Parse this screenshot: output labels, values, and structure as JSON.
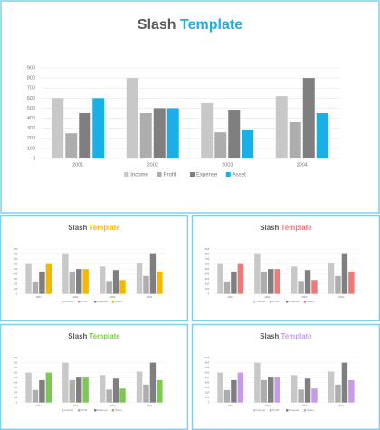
{
  "chart_data": [
    {
      "type": "bar",
      "title": [
        "Slash",
        "Template"
      ],
      "categories": [
        "2001",
        "2002",
        "2003",
        "2004"
      ],
      "series": [
        {
          "name": "Income",
          "color": "#c8c8c8",
          "values": [
            600,
            800,
            550,
            620
          ]
        },
        {
          "name": "Profit",
          "color": "#adadad",
          "values": [
            250,
            450,
            260,
            360
          ]
        },
        {
          "name": "Expense",
          "color": "#7f7f7f",
          "values": [
            450,
            500,
            480,
            800
          ]
        },
        {
          "name": "Asset",
          "color": "#1ab0e6",
          "values": [
            600,
            500,
            280,
            450
          ]
        }
      ],
      "ylim": [
        0,
        900
      ],
      "yticks": [
        0,
        100,
        200,
        300,
        400,
        500,
        600,
        700,
        800,
        900
      ],
      "grid": true,
      "legend": "bottom"
    },
    {
      "type": "bar",
      "title": [
        "Slash",
        "Template"
      ],
      "categories": [
        "2001",
        "2002",
        "2003",
        "2004"
      ],
      "series": [
        {
          "name": "Income",
          "color": "#c8c8c8",
          "values": [
            600,
            800,
            550,
            620
          ]
        },
        {
          "name": "Profit",
          "color": "#adadad",
          "values": [
            250,
            450,
            260,
            360
          ]
        },
        {
          "name": "Expense",
          "color": "#7f7f7f",
          "values": [
            450,
            500,
            480,
            800
          ]
        },
        {
          "name": "Asset",
          "color": "#f5b800",
          "values": [
            600,
            500,
            280,
            450
          ]
        }
      ],
      "ylim": [
        0,
        900
      ],
      "yticks": [
        0,
        100,
        200,
        300,
        400,
        500,
        600,
        700,
        800,
        900
      ],
      "grid": true,
      "legend": "bottom"
    },
    {
      "type": "bar",
      "title": [
        "Slash",
        "Template"
      ],
      "categories": [
        "2001",
        "2002",
        "2003",
        "2004"
      ],
      "series": [
        {
          "name": "Income",
          "color": "#c8c8c8",
          "values": [
            600,
            800,
            550,
            620
          ]
        },
        {
          "name": "Profit",
          "color": "#adadad",
          "values": [
            250,
            450,
            260,
            360
          ]
        },
        {
          "name": "Expense",
          "color": "#7f7f7f",
          "values": [
            450,
            500,
            480,
            800
          ]
        },
        {
          "name": "Asset",
          "color": "#f07878",
          "values": [
            600,
            500,
            280,
            450
          ]
        }
      ],
      "ylim": [
        0,
        900
      ],
      "yticks": [
        0,
        100,
        200,
        300,
        400,
        500,
        600,
        700,
        800,
        900
      ],
      "grid": true,
      "legend": "bottom"
    },
    {
      "type": "bar",
      "title": [
        "Slash",
        "Template"
      ],
      "categories": [
        "2001",
        "2002",
        "2003",
        "2004"
      ],
      "series": [
        {
          "name": "Income",
          "color": "#c8c8c8",
          "values": [
            600,
            800,
            550,
            620
          ]
        },
        {
          "name": "Profit",
          "color": "#adadad",
          "values": [
            250,
            450,
            260,
            360
          ]
        },
        {
          "name": "Expense",
          "color": "#7f7f7f",
          "values": [
            450,
            500,
            480,
            800
          ]
        },
        {
          "name": "Asset",
          "color": "#7dc852",
          "values": [
            600,
            500,
            280,
            450
          ]
        }
      ],
      "ylim": [
        0,
        900
      ],
      "yticks": [
        0,
        100,
        200,
        300,
        400,
        500,
        600,
        700,
        800,
        900
      ],
      "grid": true,
      "legend": "bottom"
    },
    {
      "type": "bar",
      "title": [
        "Slash",
        "Template"
      ],
      "categories": [
        "2001",
        "2002",
        "2003",
        "2004"
      ],
      "series": [
        {
          "name": "Income",
          "color": "#c8c8c8",
          "values": [
            600,
            800,
            550,
            620
          ]
        },
        {
          "name": "Profit",
          "color": "#adadad",
          "values": [
            250,
            450,
            260,
            360
          ]
        },
        {
          "name": "Expense",
          "color": "#7f7f7f",
          "values": [
            450,
            500,
            480,
            800
          ]
        },
        {
          "name": "Asset",
          "color": "#c79be8",
          "values": [
            600,
            500,
            280,
            450
          ]
        }
      ],
      "ylim": [
        0,
        900
      ],
      "yticks": [
        0,
        100,
        200,
        300,
        400,
        500,
        600,
        700,
        800,
        900
      ],
      "grid": true,
      "legend": "bottom"
    }
  ]
}
